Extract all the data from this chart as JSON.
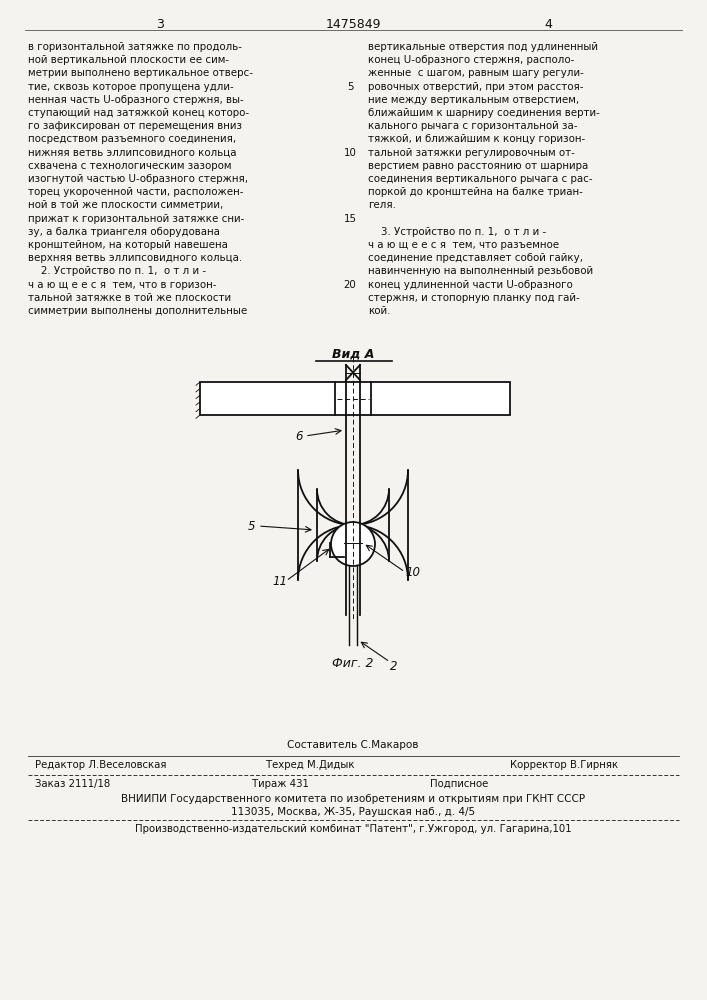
{
  "bg_color": "#f5f3ef",
  "page_number_left": "3",
  "page_number_center": "1475849",
  "page_number_right": "4",
  "left_column_text": [
    "в горизонтальной затяжке по продоль-",
    "ной вертикальной плоскости ее сим-",
    "метрии выполнено вертикальное отверс-",
    "тие, сквозь которое пропущена удли-",
    "ненная часть U-образного стержня, вы-",
    "ступающий над затяжкой конец которо-",
    "го зафиксирован от перемещения вниз",
    "посредством разъемного соединения,",
    "нижняя ветвь эллипсовидного кольца",
    "схвачена с технологическим зазором",
    "изогнутой частью U-образного стержня,",
    "торец укороченной части, расположен-",
    "ной в той же плоскости симметрии,",
    "прижат к горизонтальной затяжке сни-",
    "зу, а балка триангеля оборудована",
    "кронштейном, на который навешена",
    "верхняя ветвь эллипсовидного кольца.",
    "    2. Устройство по п. 1,  о т л и -",
    "ч а ю щ е е с я  тем, что в горизон-",
    "тальной затяжке в той же плоскости",
    "симметрии выполнены дополнительные"
  ],
  "right_column_text": [
    "вертикальные отверстия под удлиненный",
    "конец U-образного стержня, располо-",
    "женные  с шагом, равным шагу регули-",
    "ровочных отверстий, при этом расстоя-",
    "ние между вертикальным отверстием,",
    "ближайшим к шарниру соединения верти-",
    "кального рычага с горизонтальной за-",
    "тяжкой, и ближайшим к концу горизон-",
    "тальной затяжки регулировочным от-",
    "верстием равно расстоянию от шарнира",
    "соединения вертикального рычага с рас-",
    "поркой до кронштейна на балке триан-",
    "геля.",
    "",
    "    3. Устройство по п. 1,  о т л и -",
    "ч а ю щ е е с я  тем, что разъемное",
    "соединение представляет собой гайку,",
    "навинченную на выполненный резьбовой",
    "конец удлиненной части U-образного",
    "стержня, и стопорную планку под гай-",
    "кой."
  ],
  "line_numbers": {
    "5": 3,
    "10": 8,
    "15": 13,
    "20": 18
  },
  "fig_label": "Фиг. 2",
  "vid_label": "Вид А",
  "footer_editor": "Редактор Л.Веселовская",
  "footer_tech": "Техред М.Дидык",
  "footer_corrector": "Корректор В.Гирняк",
  "footer_compiler_label": "Составитель С.Макаров",
  "footer_order": "Заказ 2111/18",
  "footer_circulation": "Тираж 431",
  "footer_subscription": "Подписное",
  "footer_vniiphi": "ВНИИПИ Государственного комитета по изобретениям и открытиям при ГКНТ СССР",
  "footer_address": "113035, Москва, Ж-35, Раушская наб., д. 4/5",
  "footer_publisher": "Производственно-издательский комбинат \"Патент\", г.Ужгород, ул. Гагарина,101"
}
